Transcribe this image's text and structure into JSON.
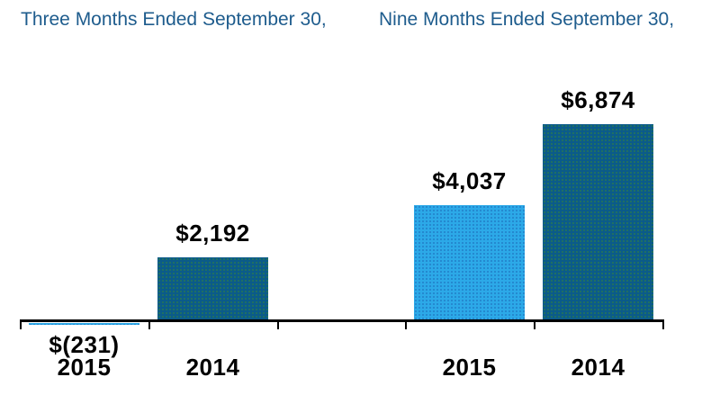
{
  "header": {
    "left_title": "Three Months Ended September 30,",
    "right_title": "Nine Months Ended September 30,"
  },
  "colors": {
    "title_blue": "#1E5C8D",
    "bar_2014_dark_blue": "#0B5B8A",
    "bar_2015_light_blue": "#2CA9E8",
    "axis_black": "#000000",
    "label_black": "#000000"
  },
  "chart_data": {
    "type": "bar",
    "title": "",
    "xlabel": "",
    "ylabel": "",
    "grid": false,
    "legend": false,
    "ylim": [
      -231,
      6874
    ],
    "groups": [
      {
        "name": "Three Months Ended September 30,",
        "bars": [
          {
            "category": "2015",
            "value": -231,
            "label": "$(231)",
            "color": "light"
          },
          {
            "category": "2014",
            "value": 2192,
            "label": "$2,192",
            "color": "dark"
          }
        ]
      },
      {
        "name": "Nine Months Ended September 30,",
        "bars": [
          {
            "category": "2015",
            "value": 4037,
            "label": "$4,037",
            "color": "light"
          },
          {
            "category": "2014",
            "value": 6874,
            "label": "$6,874",
            "color": "dark"
          }
        ]
      }
    ]
  }
}
